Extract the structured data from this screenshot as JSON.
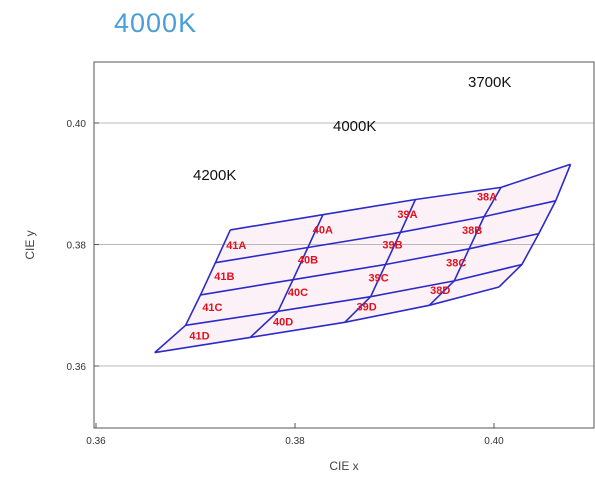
{
  "chart_data": {
    "type": "other",
    "title": "4000K",
    "title_color": "#4a9fd8",
    "xlabel": "CIE x",
    "ylabel": "CIE y",
    "xlim": [
      0.36,
      0.41
    ],
    "ylim": [
      0.355,
      0.415
    ],
    "x_ticks": [
      {
        "value": 0.36,
        "label": "0.36"
      },
      {
        "value": 0.38,
        "label": "0.38"
      },
      {
        "value": 0.4,
        "label": "0.40"
      }
    ],
    "y_ticks": [
      {
        "value": 0.36,
        "label": "0.36"
      },
      {
        "value": 0.38,
        "label": "0.38"
      },
      {
        "value": 0.4,
        "label": "0.40"
      }
    ],
    "grid": "horizontal",
    "grid_color": "#b8b8b8",
    "line_color": "#2b2bc8",
    "bin_label_color": "#e0101e",
    "cell_fill": "#fdf1f8",
    "grid_points": [
      [
        [
          0.3659,
          0.3622
        ],
        [
          0.369,
          0.3667
        ],
        [
          0.3705,
          0.3717
        ],
        [
          0.372,
          0.377
        ],
        [
          0.3735,
          0.3824
        ]
      ],
      [
        [
          0.3755,
          0.3647
        ],
        [
          0.3783,
          0.369
        ],
        [
          0.3798,
          0.3742
        ],
        [
          0.3813,
          0.3795
        ],
        [
          0.3828,
          0.3849
        ]
      ],
      [
        [
          0.385,
          0.3672
        ],
        [
          0.3876,
          0.3714
        ],
        [
          0.3891,
          0.3767
        ],
        [
          0.3906,
          0.382
        ],
        [
          0.3921,
          0.3874
        ]
      ],
      [
        [
          0.3935,
          0.37
        ],
        [
          0.396,
          0.374
        ],
        [
          0.3975,
          0.3793
        ],
        [
          0.399,
          0.3846
        ],
        [
          0.4007,
          0.3894
        ]
      ],
      [
        [
          0.4005,
          0.373
        ],
        [
          0.4028,
          0.3767
        ],
        [
          0.4045,
          0.3818
        ],
        [
          0.4062,
          0.3872
        ],
        [
          0.4077,
          0.3932
        ]
      ]
    ],
    "cct_labels": [
      "4200K",
      "4000K",
      "3700K"
    ],
    "bins": [
      {
        "label": "41D",
        "x": 0.3704,
        "y": 0.365
      },
      {
        "label": "41C",
        "x": 0.3717,
        "y": 0.3697
      },
      {
        "label": "41B",
        "x": 0.3729,
        "y": 0.3748
      },
      {
        "label": "41A",
        "x": 0.3741,
        "y": 0.3799
      },
      {
        "label": "40D",
        "x": 0.3788,
        "y": 0.3673
      },
      {
        "label": "40C",
        "x": 0.3803,
        "y": 0.3722
      },
      {
        "label": "40B",
        "x": 0.3813,
        "y": 0.3775
      },
      {
        "label": "40A",
        "x": 0.3828,
        "y": 0.3825
      },
      {
        "label": "39D",
        "x": 0.3872,
        "y": 0.3698
      },
      {
        "label": "39C",
        "x": 0.3884,
        "y": 0.3746
      },
      {
        "label": "39B",
        "x": 0.3898,
        "y": 0.38
      },
      {
        "label": "39A",
        "x": 0.3913,
        "y": 0.385
      },
      {
        "label": "38D",
        "x": 0.3946,
        "y": 0.3725
      },
      {
        "label": "38C",
        "x": 0.3962,
        "y": 0.377
      },
      {
        "label": "38B",
        "x": 0.3978,
        "y": 0.3824
      },
      {
        "label": "38A",
        "x": 0.3993,
        "y": 0.3879
      }
    ]
  }
}
